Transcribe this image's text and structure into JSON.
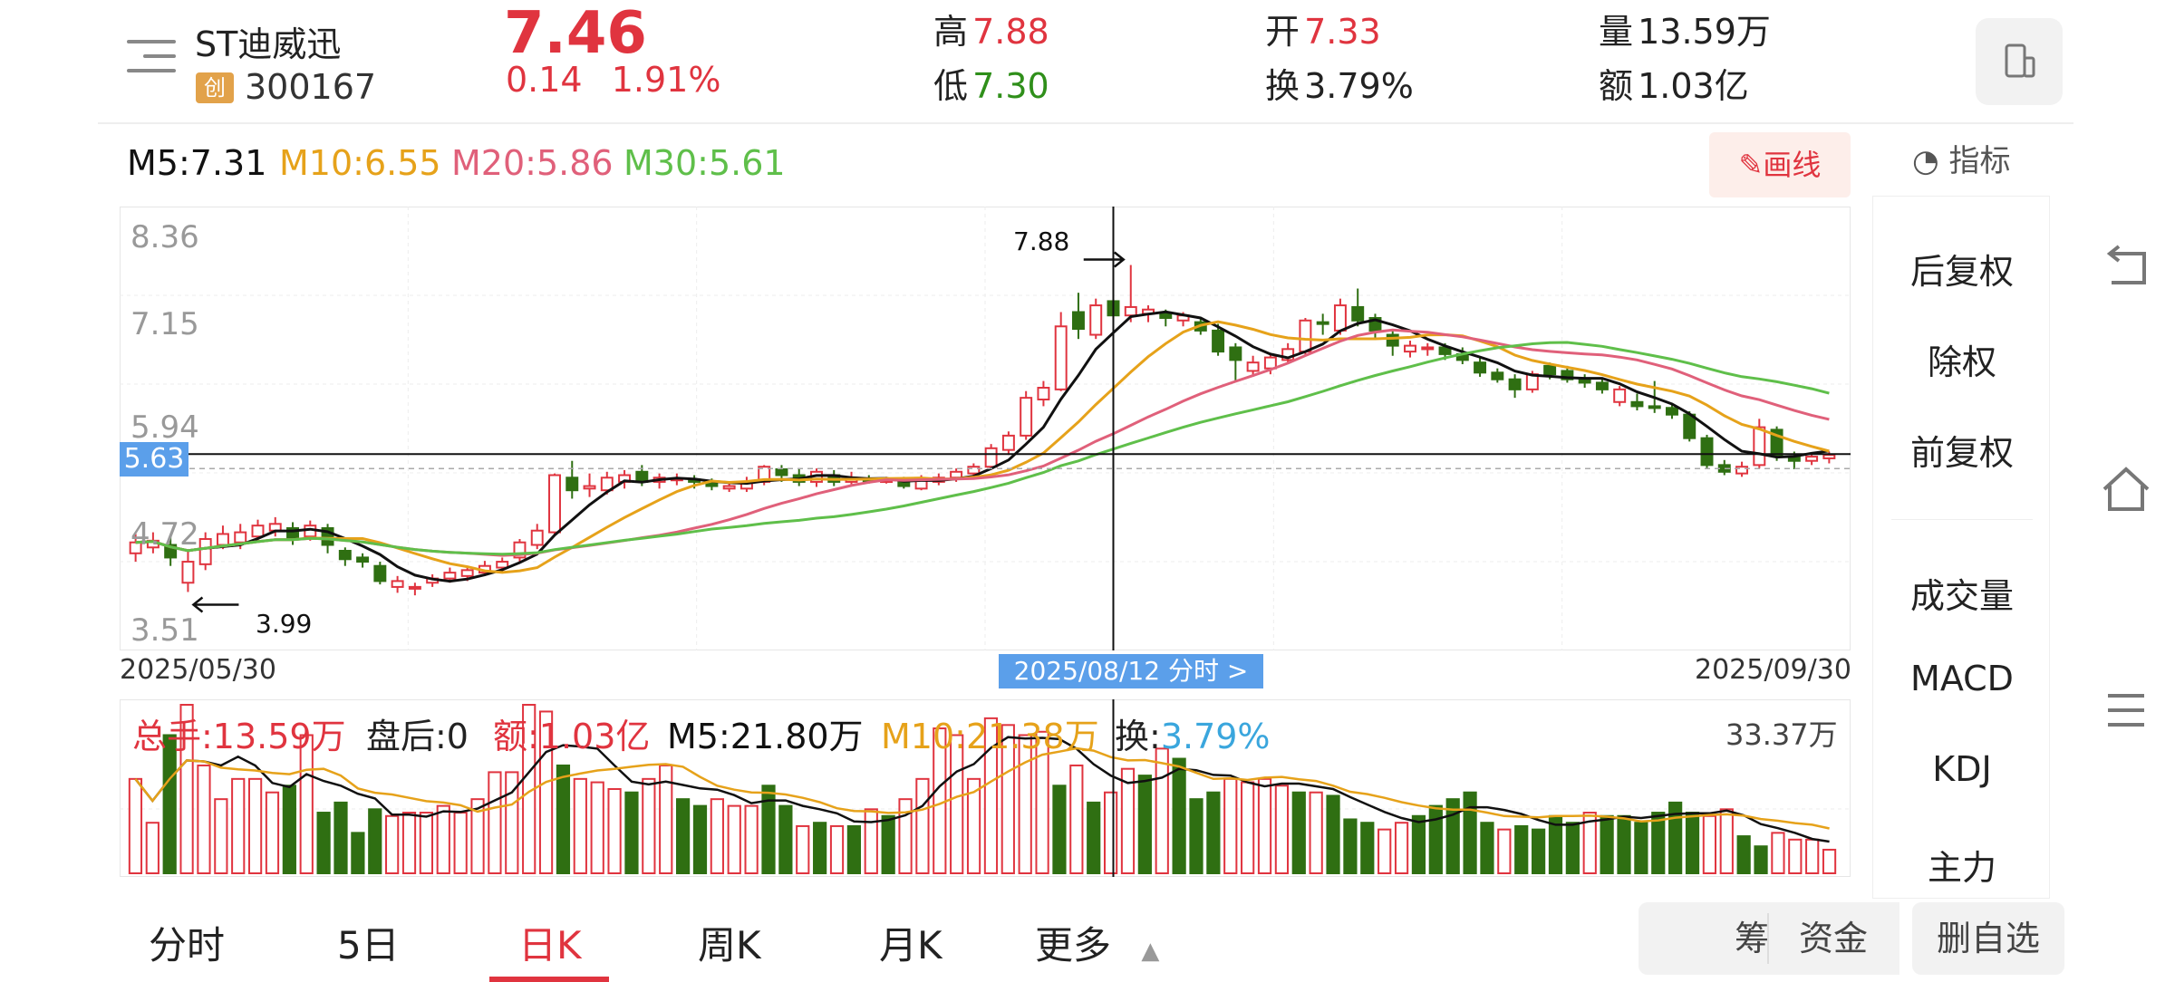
{
  "stock": {
    "name": "ST迪威迅",
    "badge": "创",
    "code": "300167",
    "price": "7.46",
    "change": "0.14",
    "change_pct": "1.91%"
  },
  "stats": {
    "high_label": "高",
    "high_value": "7.88",
    "low_label": "低",
    "low_value": "7.30",
    "open_label": "开",
    "open_value": "7.33",
    "turnover_label": "换",
    "turnover_value": "3.79%",
    "volume_label": "量",
    "volume_value": "13.59万",
    "amount_label": "额",
    "amount_value": "1.03亿"
  },
  "ma_legend": {
    "m5": "M5:7.31",
    "m10": "M10:6.55",
    "m20": "M20:5.86",
    "m30": "M30:5.61"
  },
  "colors": {
    "up": "#e0343f",
    "down": "#2f6f12",
    "m5": "#111111",
    "m10": "#e6a21a",
    "m20": "#e0607a",
    "m30": "#5fbf4a",
    "crosshair_tag": "#5b9fea"
  },
  "price_axis": {
    "labels": [
      "8.36",
      "7.15",
      "5.94",
      "4.72",
      "3.51"
    ]
  },
  "crosshair": {
    "price_tag": "5.63",
    "date_tag": "2025/08/12   分时 >"
  },
  "annotations": {
    "high": "7.88",
    "low": "3.99"
  },
  "dates": {
    "start": "2025/05/30",
    "end": "2025/09/30"
  },
  "volume_legend": {
    "total": "总手:13.59万",
    "after_hours": "盘后:0",
    "amount": "额:1.03亿",
    "m5": "M5:21.80万",
    "m10": "M10:21.38万",
    "turnover_label": "换:",
    "turnover_value": "3.79%",
    "max": "33.37万"
  },
  "toolbar": {
    "draw_label": "✎画线",
    "indicator_label": "指标"
  },
  "sidebar": {
    "items": [
      "后复权",
      "除权",
      "前复权",
      "成交量",
      "MACD",
      "KDJ",
      "主力"
    ],
    "active": [
      "前复权",
      "成交量"
    ]
  },
  "bottom_tabs": {
    "items": [
      "分时",
      "5日",
      "日K",
      "周K",
      "月K",
      "更多"
    ],
    "active": "日K"
  },
  "bottom_buttons": {
    "chips": "筹码",
    "funds": "资金",
    "remove_watch": "删自选"
  },
  "chart_data": {
    "type": "candlestick",
    "x_range": [
      "2025/05/30",
      "2025/09/30"
    ],
    "ylim": [
      3.51,
      8.36
    ],
    "candles": [
      {
        "o": 4.45,
        "c": 4.58,
        "h": 4.68,
        "l": 4.35,
        "up": true
      },
      {
        "o": 4.52,
        "c": 4.6,
        "h": 4.7,
        "l": 4.45,
        "up": true
      },
      {
        "o": 4.55,
        "c": 4.4,
        "h": 4.65,
        "l": 4.3,
        "up": false
      },
      {
        "o": 4.1,
        "c": 4.35,
        "h": 4.48,
        "l": 3.99,
        "up": true
      },
      {
        "o": 4.32,
        "c": 4.62,
        "h": 4.7,
        "l": 4.25,
        "up": true
      },
      {
        "o": 4.55,
        "c": 4.68,
        "h": 4.78,
        "l": 4.5,
        "up": true
      },
      {
        "o": 4.58,
        "c": 4.7,
        "h": 4.8,
        "l": 4.5,
        "up": true
      },
      {
        "o": 4.65,
        "c": 4.78,
        "h": 4.85,
        "l": 4.58,
        "up": true
      },
      {
        "o": 4.72,
        "c": 4.8,
        "h": 4.88,
        "l": 4.65,
        "up": true
      },
      {
        "o": 4.75,
        "c": 4.62,
        "h": 4.82,
        "l": 4.55,
        "up": false
      },
      {
        "o": 4.65,
        "c": 4.78,
        "h": 4.84,
        "l": 4.6,
        "up": true
      },
      {
        "o": 4.75,
        "c": 4.55,
        "h": 4.8,
        "l": 4.45,
        "up": false
      },
      {
        "o": 4.48,
        "c": 4.38,
        "h": 4.52,
        "l": 4.3,
        "up": false
      },
      {
        "o": 4.4,
        "c": 4.35,
        "h": 4.45,
        "l": 4.28,
        "up": false
      },
      {
        "o": 4.3,
        "c": 4.12,
        "h": 4.35,
        "l": 4.08,
        "up": false
      },
      {
        "o": 4.12,
        "c": 4.05,
        "h": 4.18,
        "l": 3.98,
        "up": true
      },
      {
        "o": 4.05,
        "c": 4.05,
        "h": 4.1,
        "l": 3.95,
        "up": true
      },
      {
        "o": 4.1,
        "c": 4.15,
        "h": 4.2,
        "l": 4.05,
        "up": true
      },
      {
        "o": 4.15,
        "c": 4.22,
        "h": 4.28,
        "l": 4.1,
        "up": true
      },
      {
        "o": 4.18,
        "c": 4.25,
        "h": 4.3,
        "l": 4.12,
        "up": true
      },
      {
        "o": 4.22,
        "c": 4.3,
        "h": 4.36,
        "l": 4.18,
        "up": true
      },
      {
        "o": 4.28,
        "c": 4.35,
        "h": 4.4,
        "l": 4.22,
        "up": true
      },
      {
        "o": 4.4,
        "c": 4.58,
        "h": 4.62,
        "l": 4.35,
        "up": true
      },
      {
        "o": 4.55,
        "c": 4.72,
        "h": 4.8,
        "l": 4.5,
        "up": true
      },
      {
        "o": 4.7,
        "c": 5.38,
        "h": 5.4,
        "l": 4.66,
        "up": true
      },
      {
        "o": 5.35,
        "c": 5.2,
        "h": 5.55,
        "l": 5.1,
        "up": false
      },
      {
        "o": 5.22,
        "c": 5.25,
        "h": 5.4,
        "l": 5.12,
        "up": true
      },
      {
        "o": 5.2,
        "c": 5.35,
        "h": 5.42,
        "l": 5.15,
        "up": true
      },
      {
        "o": 5.3,
        "c": 5.38,
        "h": 5.44,
        "l": 5.22,
        "up": true
      },
      {
        "o": 5.42,
        "c": 5.3,
        "h": 5.5,
        "l": 5.25,
        "up": false
      },
      {
        "o": 5.3,
        "c": 5.35,
        "h": 5.4,
        "l": 5.22,
        "up": true
      },
      {
        "o": 5.32,
        "c": 5.34,
        "h": 5.4,
        "l": 5.26,
        "up": true
      },
      {
        "o": 5.33,
        "c": 5.3,
        "h": 5.38,
        "l": 5.22,
        "up": false
      },
      {
        "o": 5.28,
        "c": 5.25,
        "h": 5.34,
        "l": 5.2,
        "up": false
      },
      {
        "o": 5.25,
        "c": 5.22,
        "h": 5.3,
        "l": 5.18,
        "up": true
      },
      {
        "o": 5.22,
        "c": 5.3,
        "h": 5.36,
        "l": 5.18,
        "up": true
      },
      {
        "o": 5.3,
        "c": 5.48,
        "h": 5.5,
        "l": 5.26,
        "up": true
      },
      {
        "o": 5.45,
        "c": 5.38,
        "h": 5.5,
        "l": 5.3,
        "up": false
      },
      {
        "o": 5.38,
        "c": 5.3,
        "h": 5.45,
        "l": 5.25,
        "up": false
      },
      {
        "o": 5.3,
        "c": 5.42,
        "h": 5.46,
        "l": 5.24,
        "up": true
      },
      {
        "o": 5.38,
        "c": 5.3,
        "h": 5.44,
        "l": 5.25,
        "up": false
      },
      {
        "o": 5.3,
        "c": 5.35,
        "h": 5.42,
        "l": 5.25,
        "up": true
      },
      {
        "o": 5.33,
        "c": 5.32,
        "h": 5.38,
        "l": 5.28,
        "up": false
      },
      {
        "o": 5.32,
        "c": 5.32,
        "h": 5.36,
        "l": 5.28,
        "up": true
      },
      {
        "o": 5.32,
        "c": 5.25,
        "h": 5.36,
        "l": 5.22,
        "up": false
      },
      {
        "o": 5.22,
        "c": 5.34,
        "h": 5.38,
        "l": 5.2,
        "up": true
      },
      {
        "o": 5.3,
        "c": 5.35,
        "h": 5.4,
        "l": 5.26,
        "up": true
      },
      {
        "o": 5.35,
        "c": 5.42,
        "h": 5.46,
        "l": 5.3,
        "up": true
      },
      {
        "o": 5.4,
        "c": 5.48,
        "h": 5.52,
        "l": 5.36,
        "up": true
      },
      {
        "o": 5.48,
        "c": 5.7,
        "h": 5.75,
        "l": 5.44,
        "up": true
      },
      {
        "o": 5.68,
        "c": 5.85,
        "h": 5.9,
        "l": 5.62,
        "up": true
      },
      {
        "o": 5.85,
        "c": 6.3,
        "h": 6.38,
        "l": 5.8,
        "up": true
      },
      {
        "o": 6.28,
        "c": 6.42,
        "h": 6.5,
        "l": 6.2,
        "up": true
      },
      {
        "o": 6.4,
        "c": 7.15,
        "h": 7.32,
        "l": 6.38,
        "up": true
      },
      {
        "o": 7.32,
        "c": 7.12,
        "h": 7.55,
        "l": 7.0,
        "up": false
      },
      {
        "o": 7.05,
        "c": 7.4,
        "h": 7.48,
        "l": 7.0,
        "up": true
      },
      {
        "o": 7.45,
        "c": 7.28,
        "h": 7.5,
        "l": 7.2,
        "up": false
      },
      {
        "o": 7.28,
        "c": 7.38,
        "h": 7.88,
        "l": 7.2,
        "up": true
      },
      {
        "o": 7.35,
        "c": 7.3,
        "h": 7.4,
        "l": 7.2,
        "up": true
      },
      {
        "o": 7.3,
        "c": 7.25,
        "h": 7.35,
        "l": 7.15,
        "up": false
      },
      {
        "o": 7.28,
        "c": 7.22,
        "h": 7.32,
        "l": 7.15,
        "up": true
      },
      {
        "o": 7.2,
        "c": 7.1,
        "h": 7.25,
        "l": 7.05,
        "up": false
      },
      {
        "o": 7.1,
        "c": 6.85,
        "h": 7.18,
        "l": 6.8,
        "up": false
      },
      {
        "o": 6.9,
        "c": 6.75,
        "h": 6.95,
        "l": 6.5,
        "up": false
      },
      {
        "o": 6.72,
        "c": 6.62,
        "h": 6.8,
        "l": 6.55,
        "up": true
      },
      {
        "o": 6.65,
        "c": 6.78,
        "h": 6.82,
        "l": 6.58,
        "up": true
      },
      {
        "o": 6.75,
        "c": 6.88,
        "h": 6.95,
        "l": 6.7,
        "up": true
      },
      {
        "o": 6.85,
        "c": 7.22,
        "h": 7.25,
        "l": 6.8,
        "up": true
      },
      {
        "o": 7.18,
        "c": 7.2,
        "h": 7.3,
        "l": 7.05,
        "up": false
      },
      {
        "o": 7.1,
        "c": 7.4,
        "h": 7.48,
        "l": 7.05,
        "up": true
      },
      {
        "o": 7.38,
        "c": 7.22,
        "h": 7.6,
        "l": 7.15,
        "up": false
      },
      {
        "o": 7.25,
        "c": 7.1,
        "h": 7.3,
        "l": 7.0,
        "up": false
      },
      {
        "o": 7.05,
        "c": 6.92,
        "h": 7.1,
        "l": 6.8,
        "up": false
      },
      {
        "o": 6.92,
        "c": 6.85,
        "h": 6.98,
        "l": 6.78,
        "up": true
      },
      {
        "o": 6.88,
        "c": 6.9,
        "h": 6.95,
        "l": 6.8,
        "up": true
      },
      {
        "o": 6.9,
        "c": 6.82,
        "h": 6.95,
        "l": 6.75,
        "up": false
      },
      {
        "o": 6.82,
        "c": 6.75,
        "h": 6.9,
        "l": 6.7,
        "up": false
      },
      {
        "o": 6.72,
        "c": 6.6,
        "h": 6.78,
        "l": 6.55,
        "up": false
      },
      {
        "o": 6.6,
        "c": 6.52,
        "h": 6.65,
        "l": 6.48,
        "up": false
      },
      {
        "o": 6.52,
        "c": 6.4,
        "h": 6.58,
        "l": 6.3,
        "up": false
      },
      {
        "o": 6.4,
        "c": 6.58,
        "h": 6.62,
        "l": 6.36,
        "up": true
      },
      {
        "o": 6.58,
        "c": 6.68,
        "h": 6.72,
        "l": 6.52,
        "up": false
      },
      {
        "o": 6.62,
        "c": 6.52,
        "h": 6.68,
        "l": 6.48,
        "up": false
      },
      {
        "o": 6.52,
        "c": 6.48,
        "h": 6.58,
        "l": 6.42,
        "up": false
      },
      {
        "o": 6.48,
        "c": 6.4,
        "h": 6.52,
        "l": 6.35,
        "up": false
      },
      {
        "o": 6.4,
        "c": 6.25,
        "h": 6.44,
        "l": 6.2,
        "up": true
      },
      {
        "o": 6.25,
        "c": 6.2,
        "h": 6.35,
        "l": 6.15,
        "up": false
      },
      {
        "o": 6.2,
        "c": 6.18,
        "h": 6.5,
        "l": 6.12,
        "up": false
      },
      {
        "o": 6.18,
        "c": 6.1,
        "h": 6.22,
        "l": 6.05,
        "up": false
      },
      {
        "o": 6.1,
        "c": 5.82,
        "h": 6.14,
        "l": 5.78,
        "up": false
      },
      {
        "o": 5.82,
        "c": 5.5,
        "h": 5.86,
        "l": 5.45,
        "up": false
      },
      {
        "o": 5.5,
        "c": 5.42,
        "h": 5.56,
        "l": 5.38,
        "up": false
      },
      {
        "o": 5.4,
        "c": 5.48,
        "h": 5.54,
        "l": 5.36,
        "up": true
      },
      {
        "o": 5.5,
        "c": 5.95,
        "h": 6.05,
        "l": 5.46,
        "up": true
      },
      {
        "o": 5.92,
        "c": 5.62,
        "h": 5.96,
        "l": 5.55,
        "up": false
      },
      {
        "o": 5.6,
        "c": 5.55,
        "h": 5.66,
        "l": 5.45,
        "up": false
      },
      {
        "o": 5.55,
        "c": 5.6,
        "h": 5.64,
        "l": 5.5,
        "up": true
      },
      {
        "o": 5.58,
        "c": 5.62,
        "h": 5.66,
        "l": 5.52,
        "up": true
      }
    ],
    "volume_max": "33.37万",
    "volume_ratios": [
      0.56,
      0.3,
      0.82,
      1.0,
      0.64,
      0.44,
      0.56,
      0.56,
      0.48,
      0.52,
      0.82,
      0.36,
      0.42,
      0.24,
      0.38,
      0.34,
      0.36,
      0.36,
      0.4,
      0.36,
      0.44,
      0.6,
      0.6,
      1.0,
      0.96,
      0.64,
      0.56,
      0.54,
      0.5,
      0.48,
      0.56,
      0.64,
      0.44,
      0.4,
      0.44,
      0.4,
      0.4,
      0.52,
      0.4,
      0.28,
      0.3,
      0.28,
      0.28,
      0.38,
      0.34,
      0.44,
      0.56,
      0.86,
      0.82,
      0.56,
      0.92,
      0.88,
      0.82,
      0.84,
      0.52,
      0.64,
      0.42,
      0.48,
      0.62,
      0.58,
      0.74,
      0.68,
      0.44,
      0.48,
      0.56,
      0.54,
      0.56,
      0.52,
      0.48,
      0.48,
      0.46,
      0.32,
      0.3,
      0.26,
      0.3,
      0.34,
      0.4,
      0.44,
      0.48,
      0.3,
      0.26,
      0.28,
      0.26,
      0.34,
      0.3,
      0.36,
      0.34,
      0.34,
      0.3,
      0.36,
      0.42,
      0.36,
      0.34,
      0.38,
      0.22,
      0.16,
      0.24,
      0.2,
      0.2,
      0.14
    ]
  }
}
